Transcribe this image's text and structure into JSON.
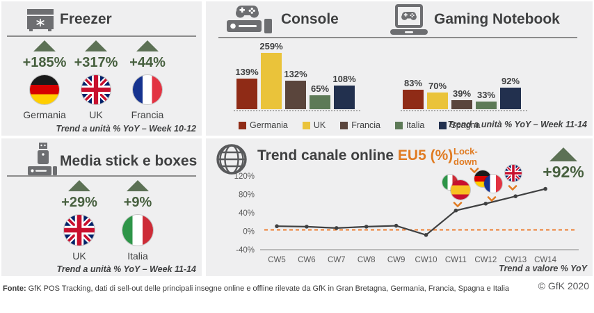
{
  "colors": {
    "panel_bg": "#efeff0",
    "accent_orange": "#e07b22",
    "green_text": "#47603f",
    "green_arrow": "#5c7155",
    "title_text": "#3f4041",
    "muted_text": "#595959",
    "line_series": "#3f4041",
    "bar_germania": "#8f2b16",
    "bar_uk": "#eac33a",
    "bar_francia": "#5a453c",
    "bar_italia": "#5d7a57",
    "bar_spagna": "#22304e"
  },
  "freezer": {
    "title": "Freezer",
    "items": [
      {
        "label": "Germania",
        "value": "+185%",
        "flag": "de"
      },
      {
        "label": "UK",
        "value": "+317%",
        "flag": "uk"
      },
      {
        "label": "Francia",
        "value": "+44%",
        "flag": "fr"
      }
    ],
    "footnote": "Trend a unità % YoY – Week 10-12"
  },
  "media_stick": {
    "title": "Media stick e boxes",
    "items": [
      {
        "label": "UK",
        "value": "+29%",
        "flag": "uk"
      },
      {
        "label": "Italia",
        "value": "+9%",
        "flag": "it"
      }
    ],
    "footnote": "Trend a unità % YoY –  Week 11-14"
  },
  "top_charts": {
    "console_title": "Console",
    "notebook_title": "Gaming Notebook",
    "footnote": "Trend a unità % YoY – Week 11-14"
  },
  "trend": {
    "title_main": "Trend canale online ",
    "title_accent": "EU5 (%)",
    "lockdown_label": "Lock-down",
    "highlight_value": "+92%",
    "footnote": "Trend a valore % YoY",
    "flag_groups": [
      {
        "flags": [
          "it",
          "es"
        ]
      },
      {
        "flags": [
          "de",
          "fr"
        ]
      },
      {
        "flags": [
          "uk"
        ]
      }
    ]
  },
  "footer": {
    "source_label": "Fonte:",
    "source_text": " GfK POS Tracking, dati di sell-out delle principali insegne online e offline rilevate da GfK in Gran Bretagna, Germania, Francia, Spagna e Italia",
    "copyright": "© GfK 2020"
  },
  "chart_data": [
    {
      "type": "bar",
      "title": "Console",
      "categories": [
        "Germania",
        "UK",
        "Francia",
        "Italia",
        "Spagna"
      ],
      "values": [
        139,
        259,
        132,
        65,
        108
      ],
      "value_labels": [
        "139%",
        "259%",
        "132%",
        "65%",
        "108%"
      ],
      "series_colors": [
        "#8f2b16",
        "#eac33a",
        "#5a453c",
        "#5d7a57",
        "#22304e"
      ],
      "unit": "%",
      "note": "Trend a unità % YoY – Week 11-14",
      "legend_position": "bottom"
    },
    {
      "type": "bar",
      "title": "Gaming Notebook",
      "categories": [
        "Germania",
        "UK",
        "Francia",
        "Italia",
        "Spagna"
      ],
      "values": [
        83,
        70,
        39,
        33,
        92
      ],
      "value_labels": [
        "83%",
        "70%",
        "39%",
        "33%",
        "92%"
      ],
      "series_colors": [
        "#8f2b16",
        "#eac33a",
        "#5a453c",
        "#5d7a57",
        "#22304e"
      ],
      "unit": "%",
      "note": "Trend a unità % YoY – Week 11-14",
      "legend_position": "bottom"
    },
    {
      "type": "line",
      "title": "Trend canale online EU5 (%)",
      "x": [
        "CW5",
        "CW6",
        "CW7",
        "CW8",
        "CW9",
        "CW10",
        "CW11",
        "CW12",
        "CW13",
        "CW14"
      ],
      "values": [
        11,
        10,
        7,
        10,
        12,
        -8,
        45,
        60,
        76,
        92
      ],
      "ylim": [
        -40,
        120
      ],
      "y_ticks": [
        120,
        80,
        40,
        0,
        -40
      ],
      "y_tick_labels": [
        "120%",
        "80%",
        "40%",
        "0%",
        "-40%"
      ],
      "baseline_dashed_at": 0,
      "annotations": [
        "Lock-down",
        "+92%"
      ],
      "note": "Trend a valore % YoY",
      "grid": false
    }
  ]
}
